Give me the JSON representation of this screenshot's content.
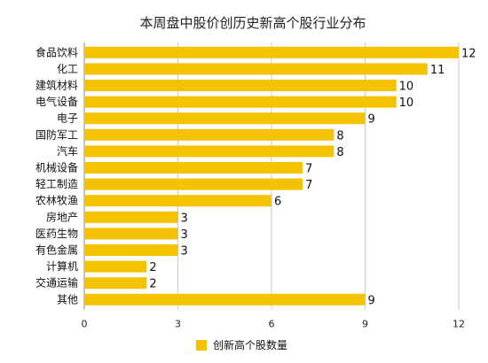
{
  "chart_data": {
    "type": "bar",
    "orientation": "horizontal",
    "title": "本周盘中股价创历史新高个股行业分布",
    "categories": [
      "食品饮料",
      "化工",
      "建筑材料",
      "电气设备",
      "电子",
      "国防军工",
      "汽车",
      "机械设备",
      "轻工制造",
      "农林牧渔",
      "房地产",
      "医药生物",
      "有色金属",
      "计算机",
      "交通运输",
      "其他"
    ],
    "series": [
      {
        "name": "创新高个股数量",
        "values": [
          12,
          11,
          10,
          10,
          9,
          8,
          8,
          7,
          7,
          6,
          3,
          3,
          3,
          2,
          2,
          9
        ]
      }
    ],
    "xlim": [
      0,
      12
    ],
    "x_ticks": [
      0,
      3,
      6,
      9,
      12
    ],
    "grid": "vertical",
    "legend_position": "bottom-center",
    "data_labels": true,
    "colors": {
      "bar": "#F5C200",
      "grid": "#C8C8C8",
      "axis": "#888888"
    }
  }
}
